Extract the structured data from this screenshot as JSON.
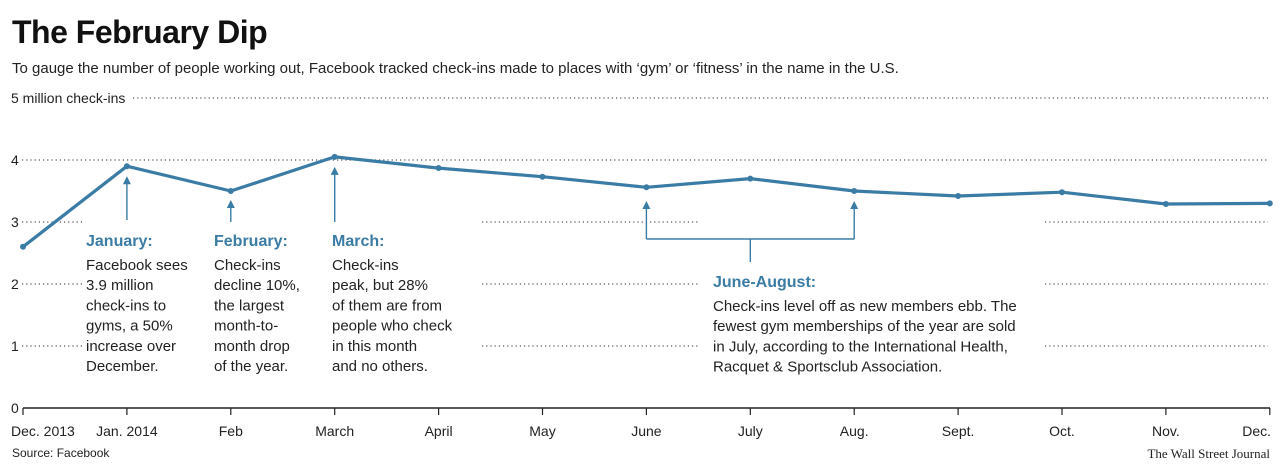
{
  "header": {
    "title": "The February Dip",
    "subtitle": "To gauge the number of people working out, Facebook tracked check-ins made to places with ‘gym’ or ‘fitness’ in the name in the U.S."
  },
  "footer": {
    "source": "Source: Facebook",
    "credit": "The Wall Street Journal"
  },
  "colors": {
    "line": "#3a7ca5",
    "accent_text": "#3a7ca5",
    "grid": "#555555"
  },
  "chart_data": {
    "type": "line",
    "title": "The February Dip",
    "ylabel": "5 million check-ins",
    "ylim": [
      0,
      5
    ],
    "yticks": [
      {
        "value": 5,
        "label": "5 million check-ins"
      },
      {
        "value": 4,
        "label": "4"
      },
      {
        "value": 3,
        "label": "3"
      },
      {
        "value": 2,
        "label": "2"
      },
      {
        "value": 1,
        "label": "1"
      },
      {
        "value": 0,
        "label": "0"
      }
    ],
    "grid": "dotted horizontal",
    "categories": [
      "Dec. 2013",
      "Jan. 2014",
      "Feb",
      "March",
      "April",
      "May",
      "June",
      "July",
      "Aug.",
      "Sept.",
      "Oct.",
      "Nov.",
      "Dec."
    ],
    "series": [
      {
        "values": [
          2.6,
          3.9,
          3.5,
          4.05,
          3.87,
          3.73,
          3.56,
          3.7,
          3.5,
          3.42,
          3.48,
          3.29,
          3.3
        ]
      }
    ],
    "annotations": [
      {
        "title": "January:",
        "lines": [
          "Facebook sees",
          "3.9 million",
          "check-ins to",
          "gyms, a 50%",
          "increase over",
          "December."
        ]
      },
      {
        "title": "February:",
        "lines": [
          "Check-ins",
          "decline 10%,",
          "the largest",
          "month-to-",
          "month drop",
          " of the year."
        ]
      },
      {
        "title": "March:",
        "lines": [
          "Check-ins",
          "peak, but 28%",
          "of them are from",
          "people who check",
          "in this month",
          "and no others."
        ]
      },
      {
        "title": "June-August:",
        "lines": [
          "Check-ins level off as new members ebb. The",
          "fewest gym memberships of the year are sold",
          "in July, according to the International Health,",
          "Racquet & Sportsclub Association."
        ]
      }
    ]
  }
}
